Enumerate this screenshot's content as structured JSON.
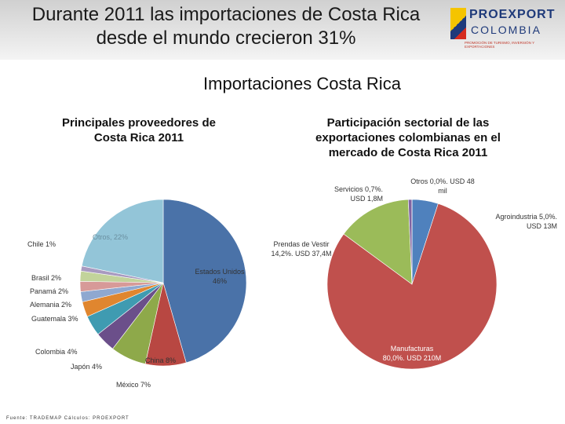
{
  "header": {
    "title": "Durante 2011 las importaciones de Costa Rica desde el mundo crecieron 31%",
    "logo": "PROEXPORT",
    "logo_sub": "COLOMBIA",
    "tagline": "PROMOCIÓN DE TURISMO, INVERSIÓN Y EXPORTACIONES"
  },
  "heading": "Importaciones Costa Rica",
  "source": "Fuente: TRADEMAP Cálculos: PROEXPORT",
  "chart_data": [
    {
      "type": "pie",
      "title": "Principales proveedores de Costa Rica 2011",
      "values": [
        46,
        8,
        7,
        4,
        4,
        3,
        2,
        2,
        2,
        1,
        22
      ],
      "value_labels": [
        "Estados Unidos 46%",
        "China 8%",
        "México 7%",
        "Japón 4%",
        "Colombia 4%",
        "Guatemala 3%",
        "Alemania 2%",
        "Panamá 2%",
        "Brasil 2%",
        "Chile 1%",
        "Otros, 22%"
      ],
      "colors": [
        "#4a72a8",
        "#b84742",
        "#8ea94a",
        "#6b4f8a",
        "#3f9bb1",
        "#e0862f",
        "#8fa8d0",
        "#d79a98",
        "#c2d39b",
        "#a89ac0",
        "#93c5d8"
      ]
    },
    {
      "type": "pie",
      "title": "Participación sectorial de las exportaciones colombianas en el mercado de Costa Rica 2011",
      "values": [
        5.0,
        80.0,
        14.2,
        0.7,
        0.0
      ],
      "value_labels": [
        "Agroindustria 5,0%. USD 13M",
        "Manufacturas 80,0%. USD 210M",
        "Prendas de Vestir 14,2%. USD 37,4M",
        "Servicios 0,7%. USD 1,8M",
        "Otros 0,0%. USD 48 mil"
      ],
      "colors": [
        "#4f81bd",
        "#c0504d",
        "#9bbb59",
        "#8064a2",
        "#4bacc6"
      ]
    }
  ]
}
